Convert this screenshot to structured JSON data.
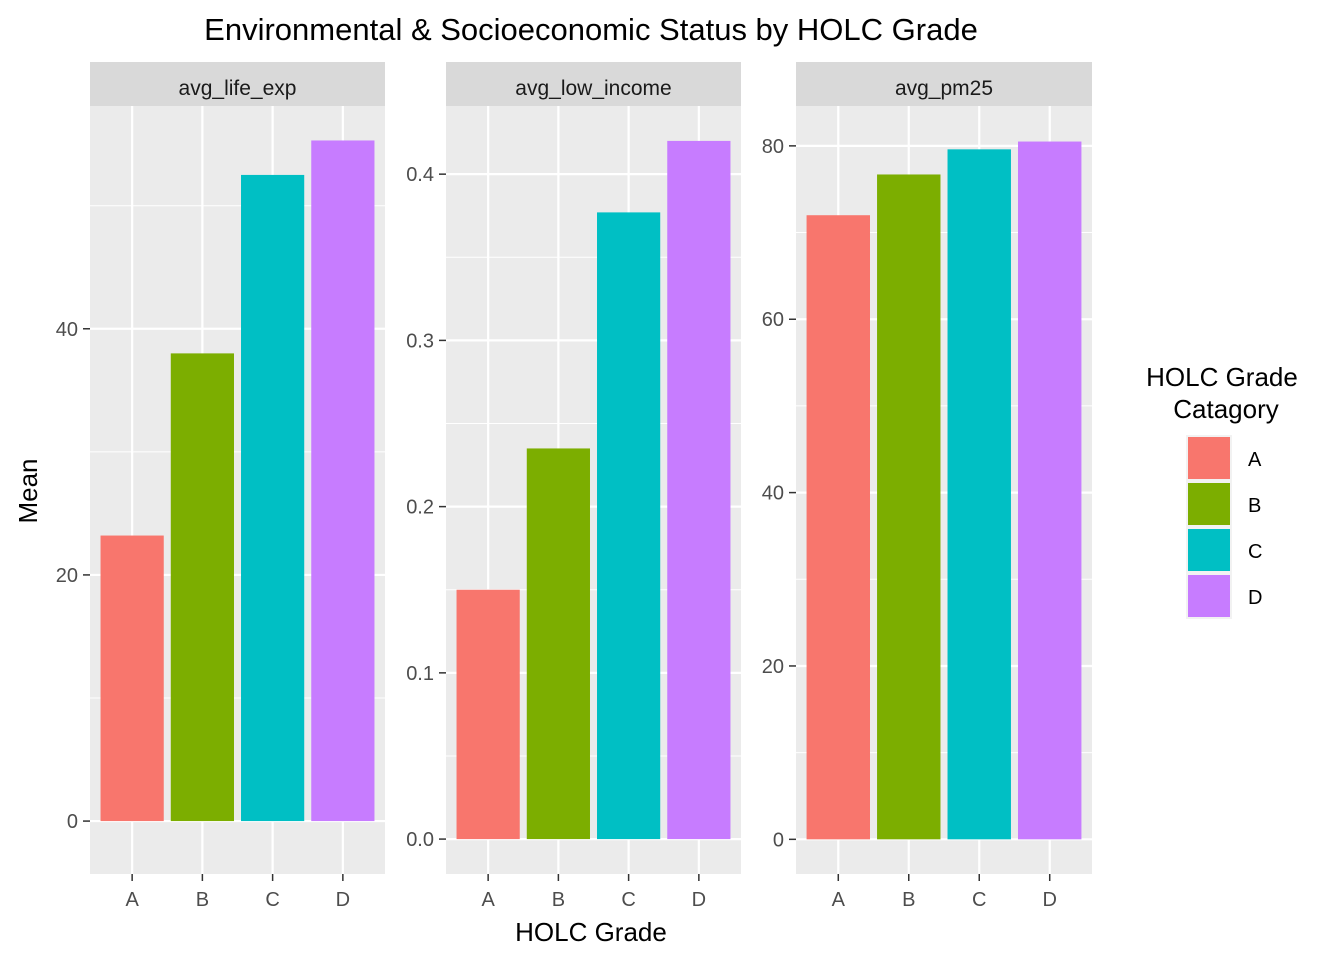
{
  "chart_data": {
    "type": "bar",
    "title": "Environmental & Socioeconomic Status by HOLC Grade",
    "xlabel": "HOLC Grade",
    "ylabel": "Mean",
    "categories": [
      "A",
      "B",
      "C",
      "D"
    ],
    "grid": true,
    "legend": {
      "title_line1": "HOLC Grade",
      "title_line2": "Catagory",
      "position": "right",
      "items": [
        {
          "label": "A",
          "color": "#F8766D"
        },
        {
          "label": "B",
          "color": "#7CAE00"
        },
        {
          "label": "C",
          "color": "#00BFC4"
        },
        {
          "label": "D",
          "color": "#C77CFF"
        }
      ]
    },
    "panels": [
      {
        "facet": "avg_life_exp",
        "values": [
          23.2,
          38.0,
          52.5,
          55.3
        ],
        "ylim": [
          -4.3,
          58.1
        ],
        "yticks": [
          0,
          20,
          40
        ],
        "ytick_labels": [
          "0",
          "20",
          "40"
        ]
      },
      {
        "facet": "avg_low_income",
        "values": [
          0.15,
          0.235,
          0.377,
          0.42
        ],
        "ylim": [
          -0.021,
          0.441
        ],
        "yticks": [
          0.0,
          0.1,
          0.2,
          0.3,
          0.4
        ],
        "ytick_labels": [
          "0.0",
          "0.1",
          "0.2",
          "0.3",
          "0.4"
        ]
      },
      {
        "facet": "avg_pm25",
        "values": [
          72.0,
          76.7,
          79.6,
          80.5
        ],
        "ylim": [
          -4.0,
          84.6
        ],
        "yticks": [
          0,
          20,
          40,
          60,
          80
        ],
        "ytick_labels": [
          "0",
          "20",
          "40",
          "60",
          "80"
        ]
      }
    ]
  }
}
